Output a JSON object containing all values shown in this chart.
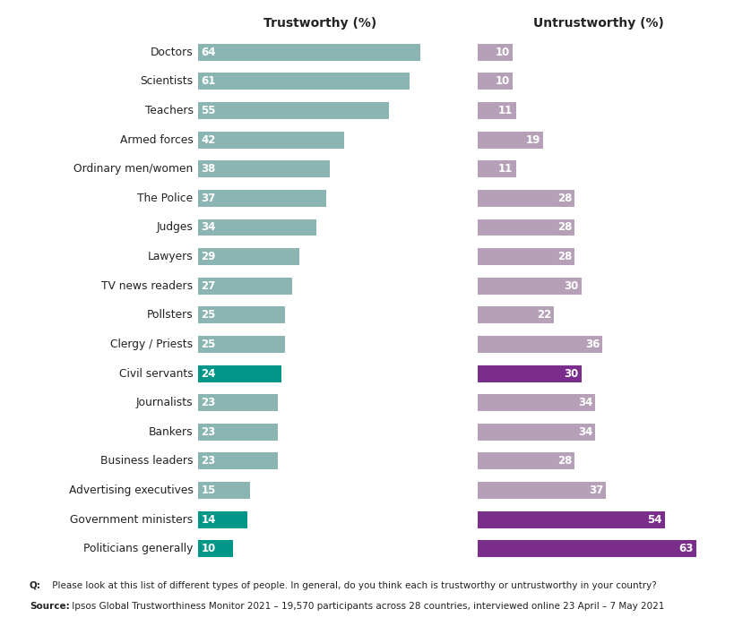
{
  "categories": [
    "Doctors",
    "Scientists",
    "Teachers",
    "Armed forces",
    "Ordinary men/women",
    "The Police",
    "Judges",
    "Lawyers",
    "TV news readers",
    "Pollsters",
    "Clergy / Priests",
    "Civil servants",
    "Journalists",
    "Bankers",
    "Business leaders",
    "Advertising executives",
    "Government ministers",
    "Politicians generally"
  ],
  "trustworthy": [
    64,
    61,
    55,
    42,
    38,
    37,
    34,
    29,
    27,
    25,
    25,
    24,
    23,
    23,
    23,
    15,
    14,
    10
  ],
  "untrustworthy": [
    10,
    10,
    11,
    19,
    11,
    28,
    28,
    28,
    30,
    22,
    36,
    30,
    34,
    34,
    28,
    37,
    54,
    63
  ],
  "trust_color_default": "#8ab5b2",
  "trust_color_highlight": "#009688",
  "untrust_color_default": "#b5a0b8",
  "untrust_color_highlight": "#7b2d8b",
  "highlight_rows": [
    11,
    16,
    17
  ],
  "text_color_white": "#ffffff",
  "title_trust": "Trustworthy (%)",
  "title_untrust": "Untrustworthy (%)",
  "footer_q_bold": "Q:",
  "footer_q_rest": " Please look at this list of different types of people. In general, do you think each is trustworthy or untrustworthy in your country?",
  "footer_s_bold": "Source:",
  "footer_s_rest": " Ipsos Global Trustworthiness Monitor 2021 – 19,570 participants across 28 countries, interviewed online 23 April – 7 May 2021",
  "bg_color": "#ffffff",
  "bar_height": 0.58
}
